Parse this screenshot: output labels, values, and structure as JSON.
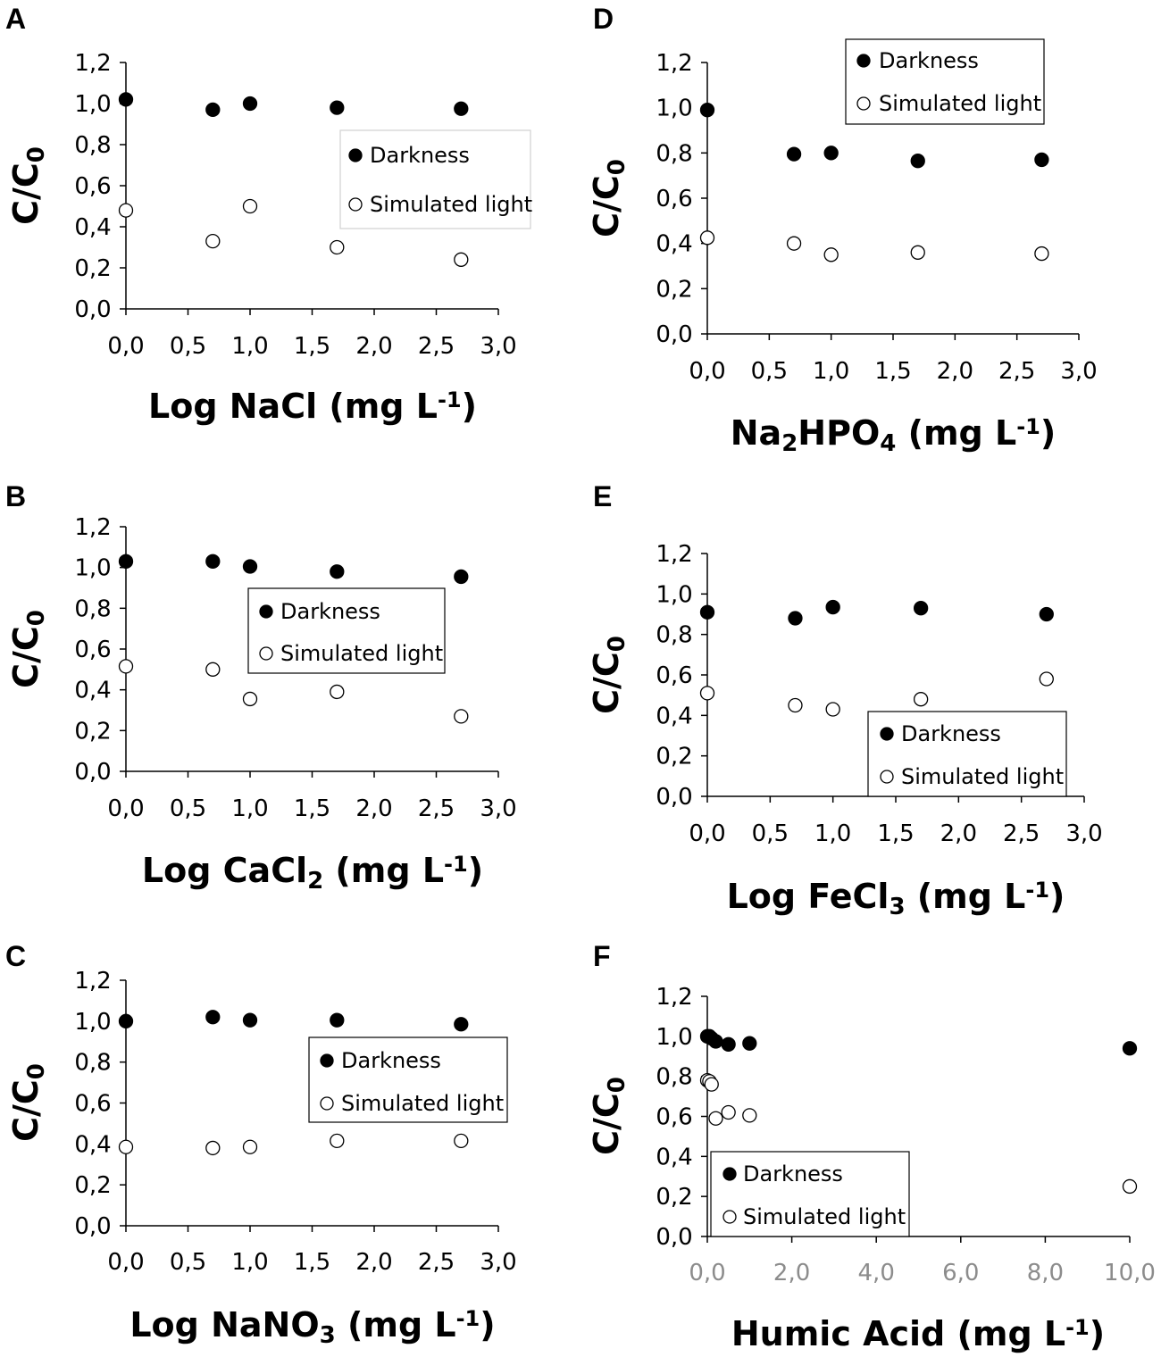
{
  "chart_data": [
    {
      "panel": "A",
      "type": "scatter",
      "xlim": [
        0,
        3
      ],
      "xticks": [
        "0,0",
        "0,5",
        "1,0",
        "1,5",
        "2,0",
        "2,5",
        "3,0"
      ],
      "ylim": [
        0,
        1.2
      ],
      "yticks": [
        "0,0",
        "0,2",
        "0,4",
        "0,6",
        "0,8",
        "1,0",
        "1,2"
      ],
      "ylabel": {
        "main": "C/C",
        "sub": "0"
      },
      "xlabel": [
        {
          "t": "Log NaCl (mg L"
        },
        {
          "t": "-1",
          "sup": true
        },
        {
          "t": ")"
        }
      ],
      "legend": {
        "position": "center-right",
        "frame_color": "#d0d0d0"
      },
      "series": [
        {
          "name": "Darkness",
          "marker": "filled-circle",
          "x": [
            0,
            0.7,
            1,
            1.7,
            2.7
          ],
          "y": [
            1.02,
            0.97,
            1.0,
            0.98,
            0.975
          ]
        },
        {
          "name": "Simulated light",
          "marker": "open-circle",
          "x": [
            0,
            0.7,
            1,
            1.7,
            2.7
          ],
          "y": [
            0.48,
            0.33,
            0.5,
            0.3,
            0.24
          ]
        }
      ]
    },
    {
      "panel": "B",
      "type": "scatter",
      "xlim": [
        0,
        3
      ],
      "xticks": [
        "0,0",
        "0,5",
        "1,0",
        "1,5",
        "2,0",
        "2,5",
        "3,0"
      ],
      "ylim": [
        0,
        1.2
      ],
      "yticks": [
        "0,0",
        "0,2",
        "0,4",
        "0,6",
        "0,8",
        "1,0",
        "1,2"
      ],
      "ylabel": {
        "main": "C/C",
        "sub": "0"
      },
      "xlabel": [
        {
          "t": "Log CaCl"
        },
        {
          "t": "2",
          "sub": true
        },
        {
          "t": " (mg L"
        },
        {
          "t": "-1",
          "sup": true
        },
        {
          "t": ")"
        }
      ],
      "legend": {
        "position": "center",
        "frame_color": "#000000"
      },
      "series": [
        {
          "name": "Darkness",
          "marker": "filled-circle",
          "x": [
            0,
            0.7,
            1,
            1.7,
            2.7
          ],
          "y": [
            1.03,
            1.03,
            1.005,
            0.98,
            0.955
          ]
        },
        {
          "name": "Simulated light",
          "marker": "open-circle",
          "x": [
            0,
            0.7,
            1,
            1.7,
            2.7
          ],
          "y": [
            0.515,
            0.5,
            0.355,
            0.39,
            0.27
          ]
        }
      ]
    },
    {
      "panel": "C",
      "type": "scatter",
      "xlim": [
        0,
        3
      ],
      "xticks": [
        "0,0",
        "0,5",
        "1,0",
        "1,5",
        "2,0",
        "2,5",
        "3,0"
      ],
      "ylim": [
        0,
        1.2
      ],
      "yticks": [
        "0,0",
        "0,2",
        "0,4",
        "0,6",
        "0,8",
        "1,0",
        "1,2"
      ],
      "ylabel": {
        "main": "C/C",
        "sub": "0"
      },
      "xlabel": [
        {
          "t": "Log NaNO"
        },
        {
          "t": "3",
          "sub": true
        },
        {
          "t": " (mg L"
        },
        {
          "t": "-1",
          "sup": true
        },
        {
          "t": ")"
        }
      ],
      "legend": {
        "position": "center-right",
        "frame_color": "#000000"
      },
      "series": [
        {
          "name": "Darkness",
          "marker": "filled-circle",
          "x": [
            0,
            0.7,
            1,
            1.7,
            2.7
          ],
          "y": [
            1.0,
            1.02,
            1.005,
            1.005,
            0.985
          ]
        },
        {
          "name": "Simulated light",
          "marker": "open-circle",
          "x": [
            0,
            0.7,
            1,
            1.7,
            2.7
          ],
          "y": [
            0.385,
            0.38,
            0.385,
            0.415,
            0.415
          ]
        }
      ]
    },
    {
      "panel": "D",
      "type": "scatter",
      "xlim": [
        0,
        3
      ],
      "xticks": [
        "0,0",
        "0,5",
        "1,0",
        "1,5",
        "2,0",
        "2,5",
        "3,0"
      ],
      "ylim": [
        0,
        1.2
      ],
      "yticks": [
        "0,0",
        "0,2",
        "0,4",
        "0,6",
        "0,8",
        "1,0",
        "1,2"
      ],
      "ylabel": {
        "main": "C/C",
        "sub": "0"
      },
      "xlabel": [
        {
          "t": "Na"
        },
        {
          "t": "2",
          "sub": true
        },
        {
          "t": "HPO"
        },
        {
          "t": "4",
          "sub": true
        },
        {
          "t": " (mg L"
        },
        {
          "t": "-1",
          "sup": true
        },
        {
          "t": ")"
        }
      ],
      "legend": {
        "position": "top-right",
        "frame_color": "#000000"
      },
      "series": [
        {
          "name": "Darkness",
          "marker": "filled-circle",
          "x": [
            0,
            0.7,
            1,
            1.7,
            2.7
          ],
          "y": [
            0.99,
            0.795,
            0.8,
            0.765,
            0.77
          ]
        },
        {
          "name": "Simulated light",
          "marker": "open-circle",
          "x": [
            0,
            0.7,
            1,
            1.7,
            2.7
          ],
          "y": [
            0.425,
            0.4,
            0.35,
            0.36,
            0.355
          ]
        }
      ]
    },
    {
      "panel": "E",
      "type": "scatter",
      "xlim": [
        0,
        3
      ],
      "xticks": [
        "0,0",
        "0,5",
        "1,0",
        "1,5",
        "2,0",
        "2,5",
        "3,0"
      ],
      "ylim": [
        0,
        1.2
      ],
      "yticks": [
        "0,0",
        "0,2",
        "0,4",
        "0,6",
        "0,8",
        "1,0",
        "1,2"
      ],
      "ylabel": {
        "main": "C/C",
        "sub": "0"
      },
      "xlabel": [
        {
          "t": "Log FeCl"
        },
        {
          "t": "3",
          "sub": true
        },
        {
          "t": " (mg L"
        },
        {
          "t": "-1",
          "sup": true
        },
        {
          "t": ")"
        }
      ],
      "legend": {
        "position": "bottom-right",
        "frame_color": "#000000"
      },
      "series": [
        {
          "name": "Darkness",
          "marker": "filled-circle",
          "x": [
            0,
            0.7,
            1,
            1.7,
            2.7
          ],
          "y": [
            0.91,
            0.88,
            0.935,
            0.93,
            0.9
          ]
        },
        {
          "name": "Simulated light",
          "marker": "open-circle",
          "x": [
            0,
            0.7,
            1,
            1.7,
            2.7
          ],
          "y": [
            0.51,
            0.45,
            0.43,
            0.48,
            0.58
          ]
        }
      ]
    },
    {
      "panel": "F",
      "type": "scatter",
      "xlim": [
        0,
        10
      ],
      "xticks": [
        "0,0",
        "2,0",
        "4,0",
        "6,0",
        "8,0",
        "10,0"
      ],
      "xtick_color": "#8c8c8c",
      "ylim": [
        0,
        1.2
      ],
      "yticks": [
        "0,0",
        "0,2",
        "0,4",
        "0,6",
        "0,8",
        "1,0",
        "1,2"
      ],
      "ylabel": {
        "main": "C/C",
        "sub": "0"
      },
      "xlabel": [
        {
          "t": "Humic Acid (mg L"
        },
        {
          "t": "-1",
          "sup": true
        },
        {
          "t": ")"
        }
      ],
      "legend": {
        "position": "bottom-left",
        "frame_color": "#000000"
      },
      "series": [
        {
          "name": "Darkness",
          "marker": "filled-circle",
          "x": [
            0,
            0.05,
            0.1,
            0.2,
            0.5,
            1,
            10
          ],
          "y": [
            1.0,
            1.0,
            0.99,
            0.975,
            0.96,
            0.965,
            0.94
          ]
        },
        {
          "name": "Simulated light",
          "marker": "open-circle",
          "x": [
            0,
            0.05,
            0.1,
            0.2,
            0.5,
            1,
            10
          ],
          "y": [
            0.78,
            0.775,
            0.76,
            0.59,
            0.62,
            0.605,
            0.25
          ]
        }
      ]
    }
  ]
}
